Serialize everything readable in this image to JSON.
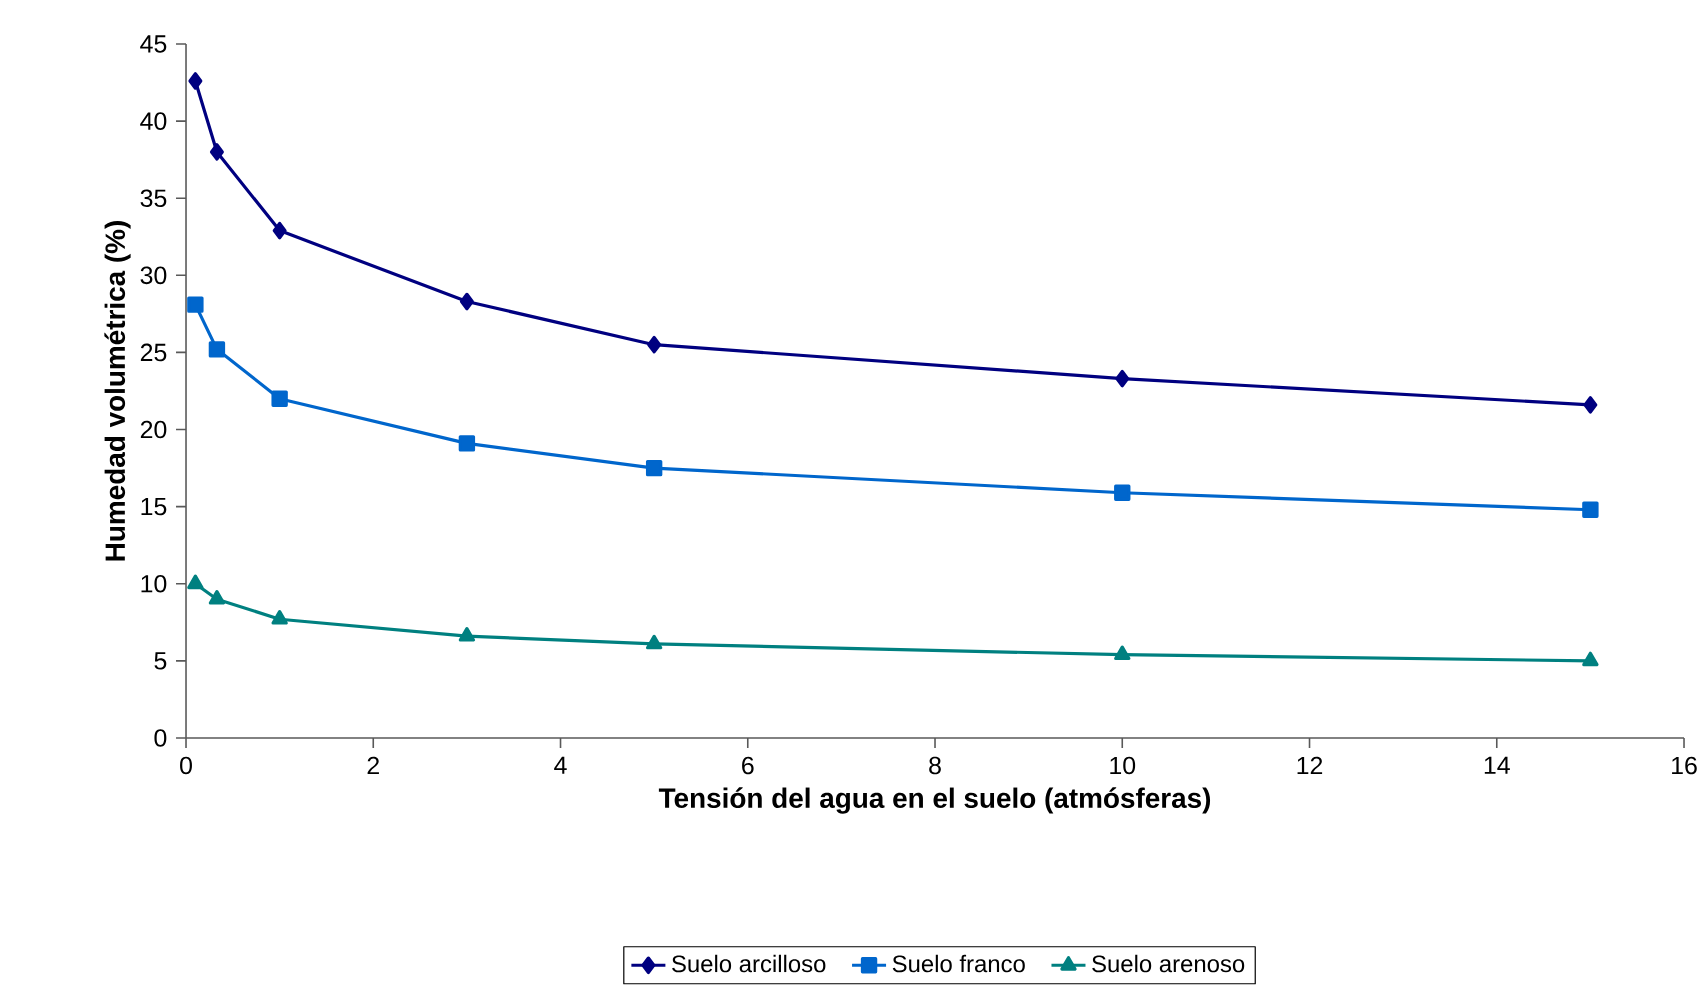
{
  "chart_data": {
    "type": "line",
    "xlabel": "Tensión del agua en el suelo (atmósferas)",
    "ylabel": "Humedad volumétrica (%)",
    "x": [
      0.1,
      0.33,
      1,
      3,
      5,
      10,
      15
    ],
    "series": [
      {
        "name": "Suelo arcilloso",
        "color": "#000080",
        "marker": "diamond",
        "values": [
          42.6,
          38,
          32.9,
          28.3,
          25.5,
          23.3,
          21.6
        ]
      },
      {
        "name": "Suelo franco",
        "color": "#0066cc",
        "marker": "square",
        "values": [
          28.1,
          25.2,
          22,
          19.1,
          17.5,
          15.9,
          14.8
        ]
      },
      {
        "name": "Suelo arenoso",
        "color": "#008080",
        "marker": "triangle",
        "values": [
          10,
          9,
          7.7,
          6.6,
          6.1,
          5.4,
          5
        ]
      }
    ],
    "xlim": [
      0,
      16
    ],
    "xticks": [
      0,
      2,
      4,
      6,
      8,
      10,
      12,
      14,
      16
    ],
    "ylim": [
      0,
      45
    ],
    "yticks": [
      0,
      5,
      10,
      15,
      20,
      25,
      30,
      35,
      40,
      45
    ],
    "grid": false,
    "legend": "bottom",
    "line_style": "solid"
  }
}
